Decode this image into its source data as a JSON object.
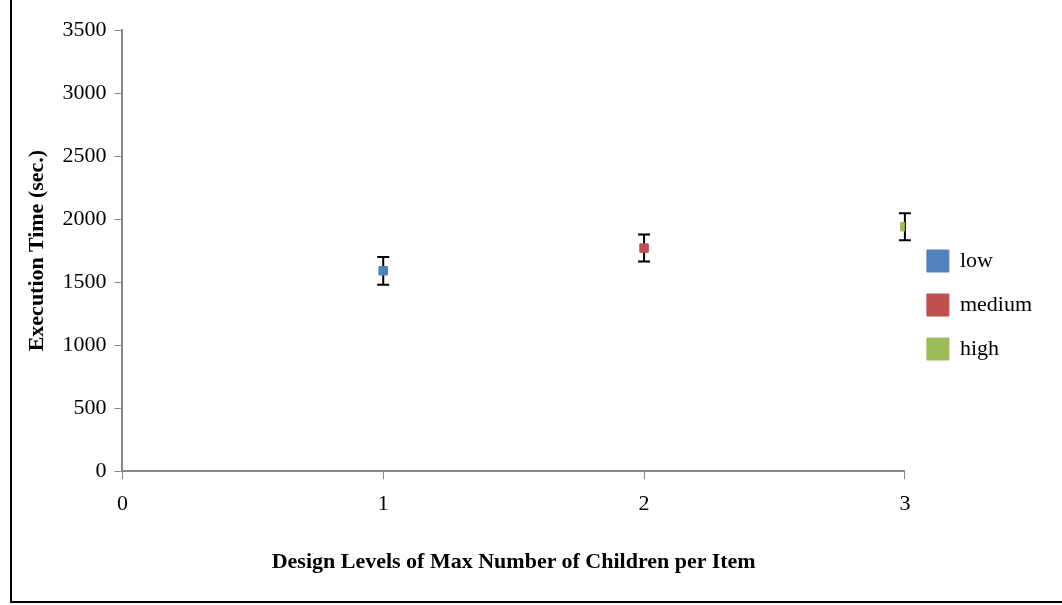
{
  "chart_data": {
    "type": "scatter",
    "xlabel": "Design Levels of Max Number of Children per Item",
    "ylabel": "Execution Time (sec.)",
    "xlim": [
      0,
      3
    ],
    "xticks": [
      0,
      1,
      2,
      3
    ],
    "ylim": [
      0,
      3500
    ],
    "yticks": [
      0,
      500,
      1000,
      1500,
      2000,
      2500,
      3000,
      3500
    ],
    "grid": false,
    "legend": "right",
    "marker": "square",
    "series": [
      {
        "name": "low",
        "color": "#4f81bd",
        "x": [
          1
        ],
        "values": [
          1590
        ],
        "errors": [
          110
        ]
      },
      {
        "name": "medium",
        "color": "#c0504d",
        "x": [
          2
        ],
        "values": [
          1770
        ],
        "errors": [
          107
        ]
      },
      {
        "name": "high",
        "color": "#9bbb59",
        "x": [
          3
        ],
        "values": [
          1940
        ],
        "errors": [
          107
        ]
      }
    ]
  }
}
